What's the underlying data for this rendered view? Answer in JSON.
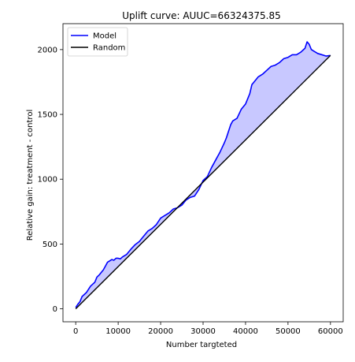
{
  "chart_data": {
    "type": "line",
    "title": "Uplift curve: AUUC=66324375.85",
    "xlabel": "Number targteted",
    "ylabel": "Relative gain: treatment - control",
    "xlim": [
      -3000,
      63000
    ],
    "ylim": [
      -100,
      2200
    ],
    "xticks": [
      0,
      10000,
      20000,
      30000,
      40000,
      50000,
      60000
    ],
    "yticks": [
      0,
      500,
      1000,
      1500,
      2000
    ],
    "grid": false,
    "legend_position": "top-left",
    "fill_between_model_and_random": true,
    "fill_color": "#c8c8ff",
    "series": [
      {
        "name": "Model",
        "color": "#0000ff",
        "x": [
          0,
          500,
          1000,
          1500,
          2000,
          2500,
          3000,
          3500,
          4000,
          4500,
          5000,
          5500,
          6000,
          6500,
          7000,
          7500,
          8000,
          8500,
          9000,
          9500,
          10000,
          10500,
          11000,
          12000,
          13000,
          14000,
          15000,
          16000,
          17000,
          18000,
          19000,
          20000,
          21000,
          22000,
          23000,
          24000,
          25000,
          26000,
          27000,
          28000,
          29000,
          30000,
          31000,
          32000,
          33000,
          34000,
          35000,
          35500,
          36000,
          36500,
          37000,
          38000,
          39000,
          40000,
          40500,
          41000,
          41500,
          42000,
          43000,
          44000,
          45000,
          46000,
          47000,
          48000,
          49000,
          50000,
          51000,
          52000,
          53000,
          54000,
          54500,
          55000,
          55500,
          56000,
          57000,
          58000,
          59000,
          60000
        ],
        "values": [
          10,
          35,
          55,
          95,
          110,
          125,
          150,
          175,
          190,
          205,
          245,
          260,
          280,
          300,
          330,
          360,
          370,
          380,
          375,
          390,
          390,
          385,
          400,
          420,
          460,
          495,
          520,
          560,
          600,
          620,
          650,
          700,
          720,
          740,
          770,
          780,
          800,
          840,
          860,
          870,
          920,
          990,
          1020,
          1090,
          1150,
          1210,
          1280,
          1320,
          1370,
          1420,
          1450,
          1470,
          1540,
          1580,
          1620,
          1660,
          1730,
          1750,
          1790,
          1810,
          1840,
          1870,
          1880,
          1900,
          1930,
          1940,
          1960,
          1960,
          1980,
          2010,
          2060,
          2040,
          2000,
          1990,
          1970,
          1960,
          1950,
          1955
        ]
      },
      {
        "name": "Random",
        "color": "#000000",
        "x": [
          0,
          60000
        ],
        "values": [
          0,
          1955
        ]
      }
    ]
  }
}
